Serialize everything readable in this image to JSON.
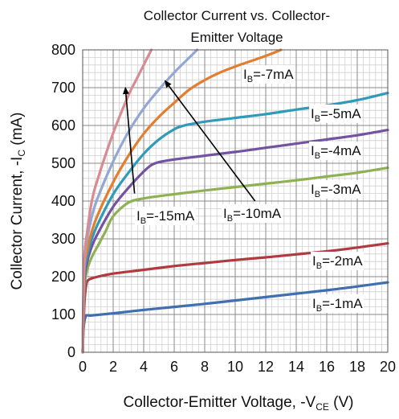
{
  "chart_data": {
    "type": "line",
    "title_lines": [
      "Collector Current vs. Collector-",
      "Emitter Voltage"
    ],
    "xlabel": {
      "main": "Collector-Emitter Voltage, -V",
      "sub": "CE",
      "unit": " (V)"
    },
    "ylabel": {
      "main": "Collector Current, -I",
      "sub": "C",
      "unit": " (mA)"
    },
    "xlim": [
      0,
      20
    ],
    "ylim": [
      0,
      800
    ],
    "x_ticks": [
      "0",
      "2",
      "4",
      "6",
      "8",
      "10",
      "12",
      "14",
      "16",
      "18",
      "20"
    ],
    "y_ticks": [
      "0",
      "100",
      "200",
      "300",
      "400",
      "500",
      "600",
      "700",
      "800"
    ],
    "grid": true,
    "minor_grid": {
      "x_step": 0.4,
      "y_step": 20
    },
    "series": [
      {
        "name": "-1mA",
        "color": "#3f6fb0",
        "x": [
          0,
          0.05,
          0.2,
          0.5,
          1,
          2,
          4,
          6,
          8,
          10,
          12,
          14,
          16,
          18,
          20
        ],
        "values": [
          0,
          60,
          95,
          97,
          99,
          103,
          112,
          120,
          128,
          137,
          146,
          155,
          164,
          174,
          185
        ]
      },
      {
        "name": "-2mA",
        "color": "#b03a40",
        "x": [
          0,
          0.1,
          0.2,
          0.3,
          0.5,
          1,
          2,
          4,
          6,
          8,
          10,
          12,
          14,
          16,
          18,
          20
        ],
        "values": [
          0,
          120,
          170,
          188,
          194,
          200,
          208,
          218,
          228,
          236,
          244,
          251,
          259,
          267,
          277,
          288
        ]
      },
      {
        "name": "-3mA",
        "color": "#8eb153",
        "x": [
          0,
          0.1,
          0.3,
          0.6,
          1,
          1.5,
          2,
          3,
          4,
          5,
          6,
          8,
          10,
          12,
          14,
          16,
          18,
          20
        ],
        "values": [
          0,
          160,
          218,
          252,
          282,
          320,
          360,
          396,
          407,
          413,
          418,
          428,
          437,
          446,
          455,
          465,
          475,
          488
        ]
      },
      {
        "name": "-4mA",
        "color": "#7352a0",
        "x": [
          0,
          0.1,
          0.3,
          0.6,
          1,
          2,
          3,
          4,
          4.5,
          5,
          6,
          8,
          10,
          12,
          14,
          16,
          18,
          20
        ],
        "values": [
          0,
          180,
          240,
          280,
          315,
          385,
          435,
          478,
          495,
          503,
          510,
          520,
          530,
          541,
          552,
          563,
          574,
          588
        ]
      },
      {
        "name": "-5mA",
        "color": "#2f9bb8",
        "x": [
          0,
          0.1,
          0.3,
          0.6,
          1,
          2,
          3,
          4,
          5,
          6,
          6.5,
          7,
          8,
          10,
          12,
          14,
          16,
          18,
          20
        ],
        "values": [
          0,
          200,
          255,
          300,
          340,
          418,
          475,
          525,
          563,
          590,
          598,
          603,
          610,
          620,
          630,
          642,
          653,
          667,
          686
        ]
      },
      {
        "name": "-7mA",
        "color": "#e37e30",
        "x": [
          0,
          0.1,
          0.3,
          0.6,
          1,
          2,
          3,
          4,
          5,
          6,
          7,
          8,
          9,
          10,
          11,
          12,
          13
        ],
        "values": [
          0,
          215,
          270,
          320,
          365,
          450,
          520,
          578,
          623,
          660,
          695,
          720,
          740,
          756,
          770,
          784,
          800
        ]
      },
      {
        "name": "-10mA",
        "color": "#92a8d4",
        "x": [
          0,
          0.1,
          0.3,
          0.6,
          1,
          2,
          3,
          4,
          5,
          6,
          7,
          7.5
        ],
        "values": [
          0,
          225,
          300,
          360,
          410,
          505,
          583,
          645,
          695,
          740,
          780,
          800
        ]
      },
      {
        "name": "-15mA",
        "color": "#d88b90",
        "x": [
          0,
          0.1,
          0.3,
          0.6,
          1,
          2,
          3,
          3.5,
          4,
          4.5
        ],
        "values": [
          0,
          240,
          320,
          400,
          460,
          580,
          680,
          720,
          760,
          800
        ]
      }
    ],
    "labels": [
      {
        "prefix": "I",
        "sub": "B",
        "text": "=-7mA"
      },
      {
        "prefix": "I",
        "sub": "B",
        "text": "=-5mA"
      },
      {
        "prefix": "I",
        "sub": "B",
        "text": "=-4mA"
      },
      {
        "prefix": "I",
        "sub": "B",
        "text": "=-3mA"
      },
      {
        "prefix": "I",
        "sub": "B",
        "text": "=-2mA"
      },
      {
        "prefix": "I",
        "sub": "B",
        "text": "=-1mA"
      },
      {
        "prefix": "I",
        "sub": "B",
        "text": "=-15mA"
      },
      {
        "prefix": "I",
        "sub": "B",
        "text": "=-10mA"
      }
    ],
    "arrows": [
      {
        "from": [
          3.4,
          420
        ],
        "to": [
          2.8,
          700
        ]
      },
      {
        "from": [
          11.3,
          400
        ],
        "to": [
          5.4,
          718
        ]
      }
    ]
  }
}
